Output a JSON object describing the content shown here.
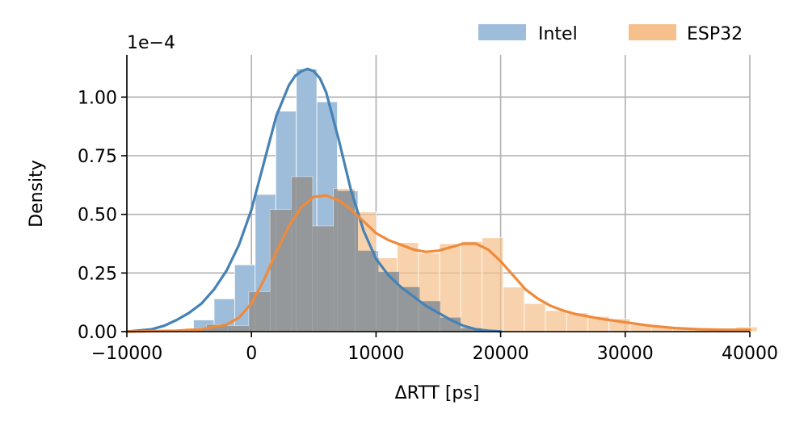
{
  "chart_data": {
    "type": "histogram",
    "xlabel": "ΔRTT [ps]",
    "ylabel": "Density",
    "y_offset_text": "1e−4",
    "y_scale": 0.0001,
    "xlim": [
      -10000,
      40000
    ],
    "ylim": [
      0,
      1.18
    ],
    "x_ticks": [
      -10000,
      0,
      10000,
      20000,
      30000,
      40000
    ],
    "x_tick_labels": [
      "−10000",
      "0",
      "10000",
      "20000",
      "30000",
      "40000"
    ],
    "y_ticks": [
      0,
      0.25,
      0.5,
      0.75,
      1.0
    ],
    "y_tick_labels": [
      "0.00",
      "0.25",
      "0.50",
      "0.75",
      "1.00"
    ],
    "grid": true,
    "legend_position": "top-right",
    "series": [
      {
        "name": "Intel",
        "color": "#4682b4",
        "hist_color": "#9dbddb",
        "bins": [
          {
            "x0": -6300,
            "x1": -4650,
            "density": 0.003
          },
          {
            "x0": -4650,
            "x1": -3000,
            "density": 0.05
          },
          {
            "x0": -3000,
            "x1": -1350,
            "density": 0.14
          },
          {
            "x0": -1350,
            "x1": 300,
            "density": 0.285
          },
          {
            "x0": 300,
            "x1": 1950,
            "density": 0.585
          },
          {
            "x0": 1950,
            "x1": 3600,
            "density": 0.94
          },
          {
            "x0": 3600,
            "x1": 5250,
            "density": 1.12
          },
          {
            "x0": 5250,
            "x1": 6900,
            "density": 0.98
          },
          {
            "x0": 6900,
            "x1": 8550,
            "density": 0.6
          },
          {
            "x0": 8550,
            "x1": 10200,
            "density": 0.345
          },
          {
            "x0": 10200,
            "x1": 11850,
            "density": 0.255
          },
          {
            "x0": 11850,
            "x1": 13500,
            "density": 0.19
          },
          {
            "x0": 13500,
            "x1": 15150,
            "density": 0.13
          },
          {
            "x0": 15150,
            "x1": 16800,
            "density": 0.06
          },
          {
            "x0": 16800,
            "x1": 18450,
            "density": 0.015
          }
        ],
        "kde_x": [
          -10000,
          -8000,
          -7000,
          -6000,
          -5000,
          -4000,
          -3000,
          -2000,
          -1000,
          0,
          1000,
          2000,
          3000,
          3500,
          4000,
          4500,
          5000,
          5500,
          6000,
          7000,
          8000,
          9000,
          10000,
          11000,
          12000,
          13000,
          14000,
          15000,
          16000,
          17000,
          18000,
          19000,
          20000
        ],
        "kde_y": [
          0.0,
          0.01,
          0.025,
          0.05,
          0.08,
          0.12,
          0.18,
          0.26,
          0.37,
          0.52,
          0.72,
          0.92,
          1.05,
          1.09,
          1.11,
          1.12,
          1.11,
          1.08,
          1.02,
          0.82,
          0.6,
          0.43,
          0.31,
          0.24,
          0.19,
          0.15,
          0.11,
          0.08,
          0.05,
          0.025,
          0.01,
          0.004,
          0.001
        ]
      },
      {
        "name": "ESP32",
        "color": "#ef8a3a",
        "hist_color": "#f5c08c",
        "bins": [
          {
            "x0": -7000,
            "x1": -5300,
            "density": 0.005
          },
          {
            "x0": -5300,
            "x1": -3600,
            "density": 0.015
          },
          {
            "x0": -3600,
            "x1": -1900,
            "density": 0.03
          },
          {
            "x0": -1900,
            "x1": -200,
            "density": 0.025
          },
          {
            "x0": -200,
            "x1": 1500,
            "density": 0.17
          },
          {
            "x0": 1500,
            "x1": 3200,
            "density": 0.52
          },
          {
            "x0": 3200,
            "x1": 4900,
            "density": 0.66
          },
          {
            "x0": 4900,
            "x1": 6600,
            "density": 0.45
          },
          {
            "x0": 6600,
            "x1": 8300,
            "density": 0.61
          },
          {
            "x0": 8300,
            "x1": 10000,
            "density": 0.51
          },
          {
            "x0": 10000,
            "x1": 11700,
            "density": 0.315
          },
          {
            "x0": 11700,
            "x1": 13400,
            "density": 0.38
          },
          {
            "x0": 13400,
            "x1": 15100,
            "density": 0.335
          },
          {
            "x0": 15100,
            "x1": 16800,
            "density": 0.375
          },
          {
            "x0": 16800,
            "x1": 18500,
            "density": 0.385
          },
          {
            "x0": 18500,
            "x1": 20200,
            "density": 0.4
          },
          {
            "x0": 20200,
            "x1": 21900,
            "density": 0.19
          },
          {
            "x0": 21900,
            "x1": 23600,
            "density": 0.12
          },
          {
            "x0": 23600,
            "x1": 25300,
            "density": 0.09
          },
          {
            "x0": 25300,
            "x1": 27000,
            "density": 0.08
          },
          {
            "x0": 27000,
            "x1": 28700,
            "density": 0.065
          },
          {
            "x0": 28700,
            "x1": 30400,
            "density": 0.055
          },
          {
            "x0": 30400,
            "x1": 32100,
            "density": 0.03
          },
          {
            "x0": 32100,
            "x1": 33800,
            "density": 0.02
          },
          {
            "x0": 33800,
            "x1": 35500,
            "density": 0.015
          },
          {
            "x0": 35500,
            "x1": 37200,
            "density": 0.012
          },
          {
            "x0": 37200,
            "x1": 38900,
            "density": 0.01
          },
          {
            "x0": 38900,
            "x1": 40600,
            "density": 0.02
          }
        ],
        "kde_x": [
          -10000,
          -6000,
          -4000,
          -2000,
          -1000,
          0,
          1000,
          2000,
          3000,
          4000,
          5000,
          6000,
          7000,
          8000,
          9000,
          10000,
          11000,
          12000,
          13000,
          14000,
          15000,
          16000,
          17000,
          18000,
          19000,
          20000,
          21000,
          22000,
          23000,
          24000,
          25000,
          26000,
          28000,
          30000,
          32000,
          34000,
          36000,
          38000,
          40000
        ],
        "kde_y": [
          0.0,
          0.004,
          0.01,
          0.03,
          0.06,
          0.12,
          0.22,
          0.34,
          0.45,
          0.53,
          0.575,
          0.58,
          0.56,
          0.52,
          0.47,
          0.42,
          0.39,
          0.37,
          0.35,
          0.34,
          0.345,
          0.36,
          0.375,
          0.375,
          0.35,
          0.3,
          0.24,
          0.18,
          0.14,
          0.11,
          0.09,
          0.075,
          0.055,
          0.04,
          0.025,
          0.015,
          0.01,
          0.008,
          0.008
        ]
      }
    ]
  }
}
